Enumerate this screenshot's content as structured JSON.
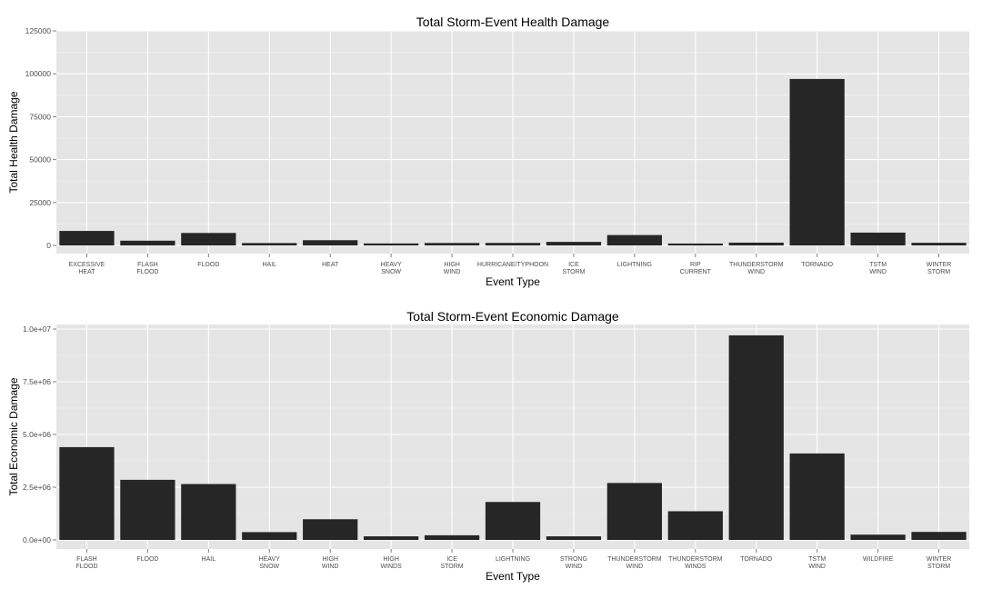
{
  "chart_data": [
    {
      "type": "bar",
      "title": "Total Storm-Event Health Damage",
      "xlabel": "Event Type",
      "ylabel": "Total Health Damage",
      "ylim": [
        0,
        125000
      ],
      "yticks": [
        0,
        25000,
        50000,
        75000,
        100000,
        125000
      ],
      "ytick_labels": [
        "0",
        "25000",
        "50000",
        "75000",
        "100000",
        "125000"
      ],
      "grid": true,
      "bar_color": "#262626",
      "categories": [
        [
          "EXCESSIVE",
          "HEAT"
        ],
        [
          "FLASH",
          "FLOOD"
        ],
        [
          "FLOOD"
        ],
        [
          "HAIL"
        ],
        [
          "HEAT"
        ],
        [
          "HEAVY",
          "SNOW"
        ],
        [
          "HIGH",
          "WIND"
        ],
        [
          "HURRICANE/TYPHOON"
        ],
        [
          "ICE",
          "STORM"
        ],
        [
          "LIGHTNING"
        ],
        [
          "RIP",
          "CURRENT"
        ],
        [
          "THUNDERSTORM",
          "WIND"
        ],
        [
          "TORNADO"
        ],
        [
          "TSTM",
          "WIND"
        ],
        [
          "WINTER",
          "STORM"
        ]
      ],
      "values": [
        8428,
        2755,
        7259,
        1376,
        3037,
        1148,
        1420,
        1446,
        2064,
        6046,
        1101,
        1621,
        96979,
        7461,
        1527
      ]
    },
    {
      "type": "bar",
      "title": "Total Storm-Event Economic Damage",
      "xlabel": "Event Type",
      "ylabel": "Total Economic Damage",
      "ylim": [
        0,
        10000000
      ],
      "yticks": [
        0,
        2500000,
        5000000,
        7500000,
        10000000
      ],
      "ytick_labels": [
        "0.0e+00",
        "2.5e+06",
        "5.0e+06",
        "7.5e+06",
        "1.0e+07"
      ],
      "grid": true,
      "bar_color": "#262626",
      "categories": [
        [
          "FLASH",
          "FLOOD"
        ],
        [
          "FLOOD"
        ],
        [
          "HAIL"
        ],
        [
          "HEAVY",
          "SNOW"
        ],
        [
          "HIGH",
          "WIND"
        ],
        [
          "HIGH",
          "WINDS"
        ],
        [
          "ICE",
          "STORM"
        ],
        [
          "LIGHTNING"
        ],
        [
          "STRONG",
          "WIND"
        ],
        [
          "THUNDERSTORM",
          "WIND"
        ],
        [
          "THUNDERSTORM",
          "WINDS"
        ],
        [
          "TORNADO"
        ],
        [
          "TSTM",
          "WIND"
        ],
        [
          "WILDFIRE"
        ],
        [
          "WINTER",
          "STORM"
        ]
      ],
      "values": [
        4400000,
        2850000,
        2650000,
        370000,
        980000,
        170000,
        220000,
        1800000,
        170000,
        2700000,
        1360000,
        9700000,
        4100000,
        250000,
        380000
      ]
    }
  ]
}
